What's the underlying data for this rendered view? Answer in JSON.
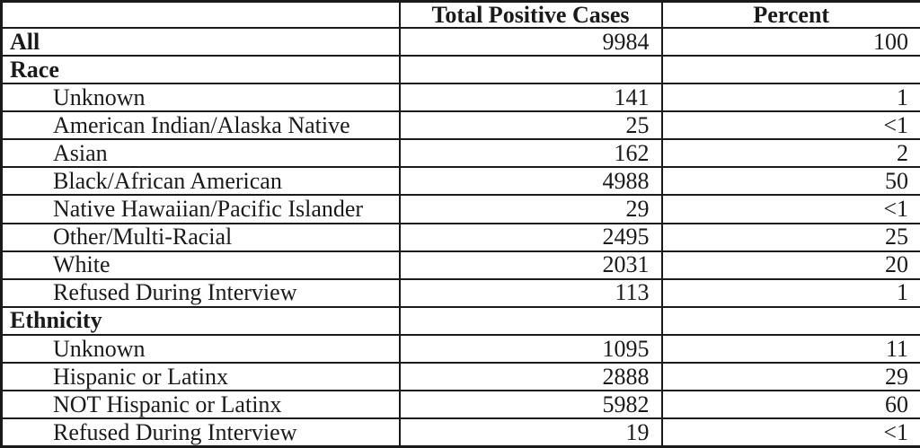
{
  "table": {
    "columns": {
      "label": "",
      "cases": "Total Positive Cases",
      "percent": "Percent"
    },
    "rows": [
      {
        "label": "All",
        "cases": "9984",
        "percent": "100",
        "style": "category"
      },
      {
        "label": "Race",
        "cases": "",
        "percent": "",
        "style": "category"
      },
      {
        "label": "Unknown",
        "cases": "141",
        "percent": "1",
        "style": "sub"
      },
      {
        "label": "American Indian/Alaska Native",
        "cases": "25",
        "percent": "<1",
        "style": "sub"
      },
      {
        "label": "Asian",
        "cases": "162",
        "percent": "2",
        "style": "sub"
      },
      {
        "label": "Black/African American",
        "cases": "4988",
        "percent": "50",
        "style": "sub"
      },
      {
        "label": "Native Hawaiian/Pacific Islander",
        "cases": "29",
        "percent": "<1",
        "style": "sub"
      },
      {
        "label": "Other/Multi-Racial",
        "cases": "2495",
        "percent": "25",
        "style": "sub"
      },
      {
        "label": "White",
        "cases": "2031",
        "percent": "20",
        "style": "sub"
      },
      {
        "label": "Refused During Interview",
        "cases": "113",
        "percent": "1",
        "style": "sub"
      },
      {
        "label": "Ethnicity",
        "cases": "",
        "percent": "",
        "style": "category"
      },
      {
        "label": "Unknown",
        "cases": "1095",
        "percent": "11",
        "style": "sub"
      },
      {
        "label": "Hispanic or Latinx",
        "cases": "2888",
        "percent": "29",
        "style": "sub"
      },
      {
        "label": "NOT Hispanic or Latinx",
        "cases": "5982",
        "percent": "60",
        "style": "sub"
      },
      {
        "label": "Refused During Interview",
        "cases": "19",
        "percent": "<1",
        "style": "sub"
      }
    ]
  },
  "colors": {
    "border": "#1a1a1a",
    "text": "#1a1a1a",
    "background": "#ffffff"
  }
}
